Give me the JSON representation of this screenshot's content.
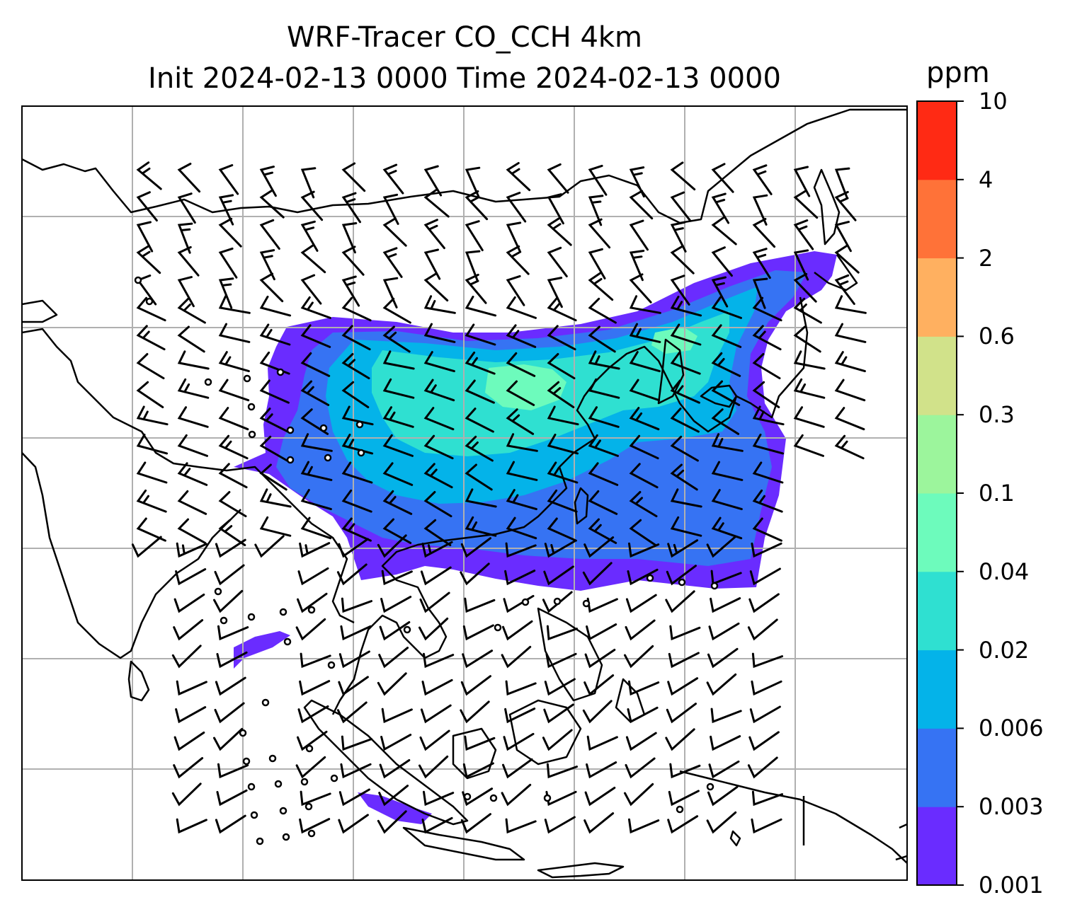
{
  "title": {
    "line1": "WRF-Tracer CO_CCH 4km",
    "line2": "Init 2024-02-13 0000 Time 2024-02-13 0000"
  },
  "colorbar": {
    "unit": "ppm",
    "levels": [
      "0.001",
      "0.003",
      "0.006",
      "0.02",
      "0.04",
      "0.1",
      "0.3",
      "0.6",
      "2",
      "4",
      "10"
    ],
    "colors": [
      "#6a2cff",
      "#3673f3",
      "#04b3e9",
      "#2fe0d1",
      "#6dfbbc",
      "#9cf59c",
      "#d1e28a",
      "#ffb060",
      "#ff7238",
      "#ff2a14"
    ]
  },
  "map": {
    "plume_colors": {
      "edge": "#6a2cff",
      "outer": "#3673f3",
      "mid": "#04b3e9",
      "inner": "#2fe0d1",
      "core": "#6dfbbc"
    },
    "wind_barbs": "black",
    "coastlines": "black",
    "gridlines": "#b0b0b0"
  }
}
